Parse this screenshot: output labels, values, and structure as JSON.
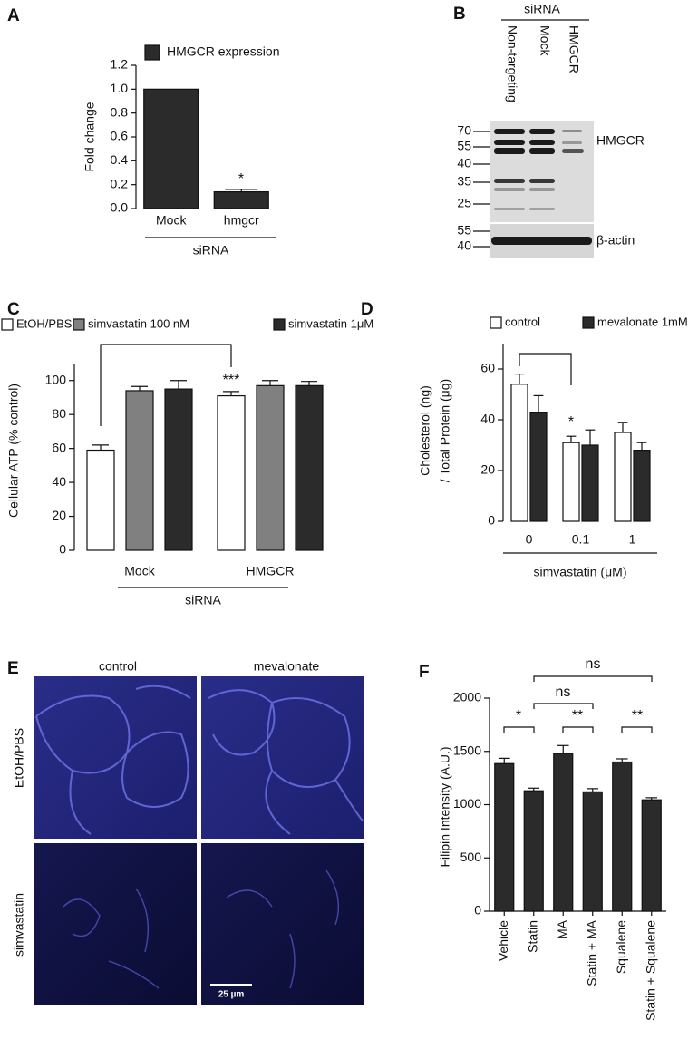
{
  "chart_data": [
    {
      "type": "bar",
      "panel": "A",
      "y_label": "Fold change",
      "categories": [
        "Mock",
        "hmgcr"
      ],
      "group_label": "siRNA",
      "series": [
        {
          "name": "HMGCR expression",
          "color": "#2b2b2b",
          "values": [
            1.0,
            0.14
          ],
          "errors": [
            null,
            0.02
          ]
        }
      ],
      "ylim": [
        0,
        1.2
      ],
      "yticks": [
        {
          "value": 0,
          "label": "0.0"
        },
        0.2,
        0.4,
        0.6,
        0.8,
        {
          "value": 1,
          "label": "1.0"
        },
        1.2
      ],
      "annotations": [
        "*"
      ]
    },
    {
      "type": "bar",
      "panel": "C",
      "y_label": "Cellular ATP (% control)",
      "categories": [
        "Mock",
        "HMGCR"
      ],
      "group_label": "siRNA",
      "series": [
        {
          "name": "EtOH/PBS",
          "color": "#ffffff",
          "values": [
            59,
            91
          ],
          "errors": [
            3,
            2.5
          ]
        },
        {
          "name": "simvastatin 100 nM",
          "color": "#808080",
          "values": [
            94,
            97
          ],
          "errors": [
            2.5,
            3
          ]
        },
        {
          "name": "simvastatin 1μM",
          "color": "#2b2b2b",
          "values": [
            95,
            97
          ],
          "errors": [
            5,
            2.5
          ]
        }
      ],
      "ylim": [
        0,
        110
      ],
      "yticks": [
        0,
        20,
        40,
        60,
        80,
        100
      ],
      "annotations": [
        "***"
      ]
    },
    {
      "type": "bar",
      "panel": "D",
      "y_label": [
        "Cholesterol (ng)",
        "/ Total Protein (μg)"
      ],
      "categories": [
        "0",
        "0.1",
        "1"
      ],
      "x_label": "simvastatin (μM)",
      "series": [
        {
          "name": "control",
          "color": "#ffffff",
          "values": [
            54,
            31,
            35
          ],
          "errors": [
            4,
            2.5,
            4
          ]
        },
        {
          "name": "mevalonate 1mM",
          "color": "#2b2b2b",
          "values": [
            43,
            30,
            28
          ],
          "errors": [
            6.5,
            6,
            3
          ]
        }
      ],
      "ylim": [
        0,
        70
      ],
      "yticks": [
        0,
        20,
        40,
        60
      ],
      "annotations": [
        "*"
      ]
    },
    {
      "type": "bar",
      "panel": "F",
      "y_label": "Filipin Intensity (A.U.)",
      "categories": [
        "Vehicle",
        "Statin",
        "MA",
        "Statin + MA",
        "Squalene",
        "Statin + Squalene"
      ],
      "series": [
        {
          "color": "#2b2b2b",
          "values": [
            1385,
            1130,
            1480,
            1120,
            1400,
            1045
          ],
          "errors": [
            50,
            25,
            75,
            30,
            30,
            20
          ]
        }
      ],
      "ylim": [
        0,
        2000
      ],
      "yticks": [
        0,
        500,
        1000,
        1500,
        2000
      ],
      "annotations": [
        "*",
        "ns",
        "**",
        "ns",
        "**"
      ]
    }
  ],
  "blot": {
    "panel": "B",
    "header": "siRNA",
    "lanes": [
      "Non-targeting",
      "Mock",
      "HMGCR"
    ],
    "markers_top": [
      "70",
      "55",
      "40",
      "35",
      "25"
    ],
    "markers_bottom": [
      "55",
      "40"
    ],
    "bands": [
      "HMGCR",
      "β-actin"
    ]
  },
  "micrograph": {
    "panel": "E",
    "columns": [
      "control",
      "mevalonate"
    ],
    "rows": [
      "EtOH/PBS",
      "simvastatin"
    ],
    "scale_bar": "25 µm"
  }
}
